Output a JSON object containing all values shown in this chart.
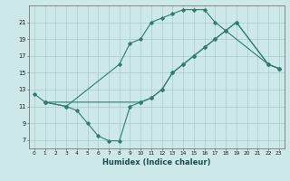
{
  "title": "",
  "xlabel": "Humidex (Indice chaleur)",
  "bg_color": "#cce8e8",
  "line_color": "#2e7d6e",
  "xlim": [
    -0.5,
    23.5
  ],
  "ylim": [
    6.0,
    23.0
  ],
  "xticks": [
    0,
    1,
    2,
    3,
    4,
    5,
    6,
    7,
    8,
    9,
    10,
    11,
    12,
    13,
    14,
    15,
    16,
    17,
    18,
    19,
    20,
    21,
    22,
    23
  ],
  "yticks": [
    7,
    9,
    11,
    13,
    15,
    17,
    19,
    21
  ],
  "series1_x": [
    0,
    1,
    3,
    8,
    9,
    10,
    11,
    12,
    13,
    14,
    15,
    16,
    17,
    22,
    23
  ],
  "series1_y": [
    12.5,
    11.5,
    11.0,
    16.0,
    18.5,
    19.0,
    21.0,
    21.5,
    22.0,
    22.5,
    22.5,
    22.5,
    21.0,
    16.0,
    15.5
  ],
  "series2_x": [
    1,
    3,
    4,
    5,
    6,
    7,
    8,
    9,
    10,
    11,
    12,
    13,
    14,
    15,
    16,
    17,
    18,
    19,
    22,
    23
  ],
  "series2_y": [
    11.5,
    11.0,
    10.5,
    9.0,
    7.5,
    6.9,
    6.9,
    11.0,
    11.5,
    12.0,
    13.0,
    15.0,
    16.0,
    17.0,
    18.0,
    19.0,
    20.0,
    21.0,
    16.0,
    15.5
  ],
  "series3_x": [
    1,
    10,
    11,
    12,
    13,
    14,
    15,
    16,
    17,
    18,
    19,
    22,
    23
  ],
  "series3_y": [
    11.5,
    11.5,
    12.0,
    13.0,
    15.0,
    16.0,
    17.0,
    18.0,
    19.0,
    20.0,
    21.0,
    16.0,
    15.5
  ]
}
